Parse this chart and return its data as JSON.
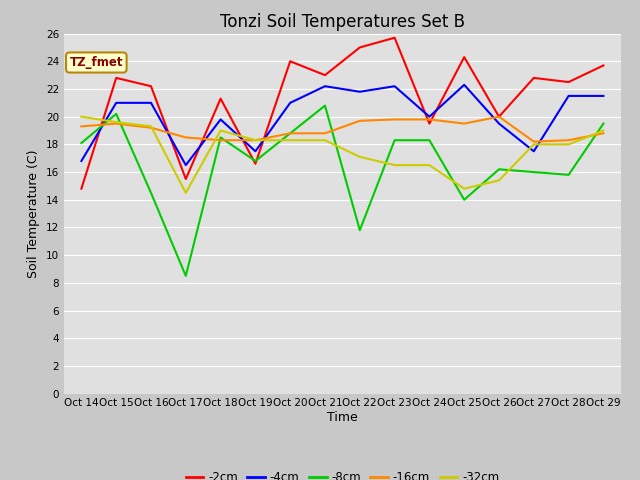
{
  "title": "Tonzi Soil Temperatures Set B",
  "xlabel": "Time",
  "ylabel": "Soil Temperature (C)",
  "ylim": [
    0,
    26
  ],
  "yticks": [
    0,
    2,
    4,
    6,
    8,
    10,
    12,
    14,
    16,
    18,
    20,
    22,
    24,
    26
  ],
  "xtick_labels": [
    "Oct 14",
    "Oct 15",
    "Oct 16",
    "Oct 17",
    "Oct 18",
    "Oct 19",
    "Oct 20",
    "Oct 21",
    "Oct 22",
    "Oct 23",
    "Oct 24",
    "Oct 25",
    "Oct 26",
    "Oct 27",
    "Oct 28",
    "Oct 29"
  ],
  "annotation_label": "TZ_fmet",
  "series_order": [
    "-2cm",
    "-4cm",
    "-8cm",
    "-16cm",
    "-32cm"
  ],
  "series": {
    "-2cm": {
      "color": "#ff0000",
      "data": [
        14.8,
        22.8,
        22.2,
        15.5,
        21.3,
        16.6,
        24.0,
        23.0,
        25.0,
        25.7,
        19.5,
        24.3,
        20.0,
        22.8,
        22.5,
        23.7
      ]
    },
    "-4cm": {
      "color": "#0000ff",
      "data": [
        16.8,
        21.0,
        21.0,
        16.5,
        19.8,
        17.5,
        21.0,
        22.2,
        21.8,
        22.2,
        20.0,
        22.3,
        19.5,
        17.5,
        21.5,
        21.5
      ]
    },
    "-8cm": {
      "color": "#00cc00",
      "data": [
        18.1,
        20.2,
        14.5,
        8.5,
        18.5,
        16.8,
        18.8,
        20.8,
        11.8,
        18.3,
        18.3,
        14.0,
        16.2,
        16.0,
        15.8,
        19.5
      ]
    },
    "-16cm": {
      "color": "#ff8800",
      "data": [
        19.3,
        19.5,
        19.2,
        18.5,
        18.3,
        18.3,
        18.8,
        18.8,
        19.7,
        19.8,
        19.8,
        19.5,
        20.0,
        18.2,
        18.3,
        18.8
      ]
    },
    "-32cm": {
      "color": "#cccc00",
      "data": [
        20.0,
        19.6,
        19.3,
        14.5,
        19.0,
        18.3,
        18.3,
        18.3,
        17.1,
        16.5,
        16.5,
        14.8,
        15.4,
        18.0,
        18.0,
        19.0
      ]
    }
  },
  "fig_bg_color": "#c8c8c8",
  "plot_bg_color": "#e0e0e0",
  "grid_color": "#ffffff",
  "title_fontsize": 12,
  "axis_label_fontsize": 9,
  "tick_fontsize": 7.5,
  "legend_fontsize": 8.5
}
